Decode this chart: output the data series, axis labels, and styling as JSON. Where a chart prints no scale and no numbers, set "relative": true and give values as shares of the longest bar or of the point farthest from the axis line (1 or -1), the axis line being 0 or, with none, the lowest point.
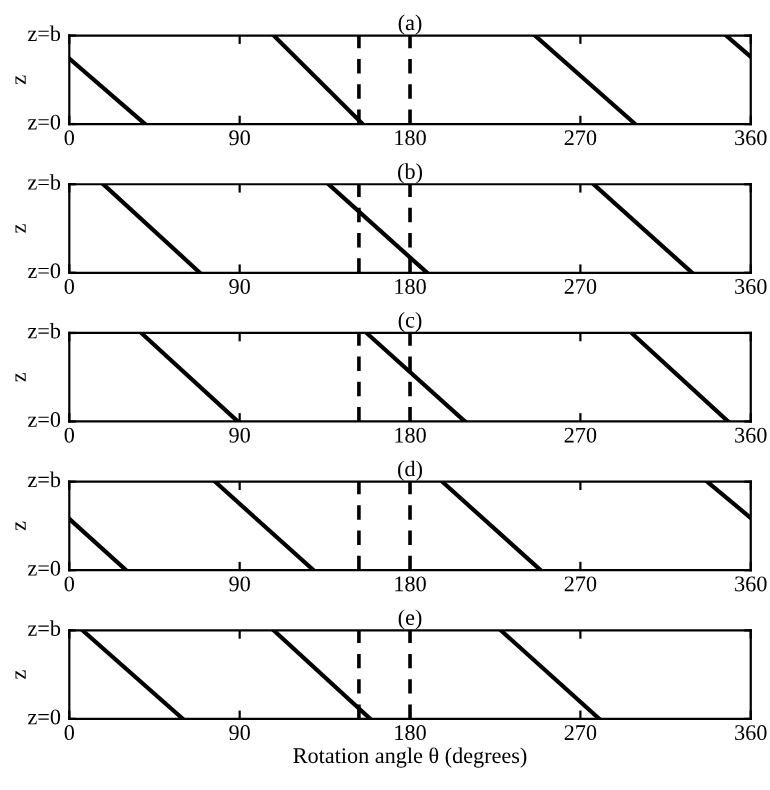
{
  "chart_data": [
    {
      "type": "line",
      "title": "(a)",
      "ylabel": "z",
      "xlim": [
        0,
        360
      ],
      "xticks": [
        0,
        90,
        180,
        270,
        360
      ],
      "relative": true,
      "annotations": [
        "z=0",
        "z=b"
      ],
      "ref_lines": [
        {
          "axis": "x",
          "value": 153,
          "color": "#000000",
          "line_style": "dashed"
        },
        {
          "axis": "x",
          "value": 180,
          "color": "#000000",
          "line_style": "dashed"
        }
      ],
      "series": [
        {
          "color": "#000000",
          "x": [
            0,
            40
          ],
          "values": [
            0.74,
            0
          ]
        },
        {
          "color": "#000000",
          "x": [
            108,
            155
          ],
          "values": [
            1,
            0
          ]
        },
        {
          "color": "#000000",
          "x": [
            246,
            299
          ],
          "values": [
            1,
            0
          ]
        },
        {
          "color": "#000000",
          "x": [
            347,
            360
          ],
          "values": [
            1,
            0.76
          ]
        }
      ]
    },
    {
      "type": "line",
      "title": "(b)",
      "ylabel": "z",
      "xlim": [
        0,
        360
      ],
      "xticks": [
        0,
        90,
        180,
        270,
        360
      ],
      "relative": true,
      "annotations": [
        "z=0",
        "z=b"
      ],
      "ref_lines": [
        {
          "axis": "x",
          "value": 153,
          "color": "#000000",
          "line_style": "dashed"
        },
        {
          "axis": "x",
          "value": 180,
          "color": "#000000",
          "line_style": "dashed"
        }
      ],
      "series": [
        {
          "color": "#000000",
          "x": [
            18,
            69
          ],
          "values": [
            1,
            0
          ]
        },
        {
          "color": "#000000",
          "x": [
            137,
            189
          ],
          "values": [
            1,
            0
          ]
        },
        {
          "color": "#000000",
          "x": [
            277,
            329
          ],
          "values": [
            1,
            0
          ]
        }
      ]
    },
    {
      "type": "line",
      "title": "(c)",
      "ylabel": "z",
      "xlim": [
        0,
        360
      ],
      "xticks": [
        0,
        90,
        180,
        270,
        360
      ],
      "relative": true,
      "annotations": [
        "z=0",
        "z=b"
      ],
      "ref_lines": [
        {
          "axis": "x",
          "value": 153,
          "color": "#000000",
          "line_style": "dashed"
        },
        {
          "axis": "x",
          "value": 180,
          "color": "#000000",
          "line_style": "dashed"
        }
      ],
      "series": [
        {
          "color": "#000000",
          "x": [
            38,
            89
          ],
          "values": [
            1,
            0
          ]
        },
        {
          "color": "#000000",
          "x": [
            157,
            209
          ],
          "values": [
            1,
            0
          ]
        },
        {
          "color": "#000000",
          "x": [
            297,
            348
          ],
          "values": [
            1,
            0
          ]
        }
      ]
    },
    {
      "type": "line",
      "title": "(d)",
      "ylabel": "z",
      "xlim": [
        0,
        360
      ],
      "xticks": [
        0,
        90,
        180,
        270,
        360
      ],
      "relative": true,
      "annotations": [
        "z=0",
        "z=b"
      ],
      "ref_lines": [
        {
          "axis": "x",
          "value": 153,
          "color": "#000000",
          "line_style": "dashed"
        },
        {
          "axis": "x",
          "value": 180,
          "color": "#000000",
          "line_style": "dashed"
        }
      ],
      "series": [
        {
          "color": "#000000",
          "x": [
            0,
            30
          ],
          "values": [
            0.58,
            0
          ]
        },
        {
          "color": "#000000",
          "x": [
            77,
            129
          ],
          "values": [
            1,
            0
          ]
        },
        {
          "color": "#000000",
          "x": [
            197,
            249
          ],
          "values": [
            1,
            0
          ]
        },
        {
          "color": "#000000",
          "x": [
            337,
            360
          ],
          "values": [
            1,
            0.59
          ]
        }
      ]
    },
    {
      "type": "line",
      "title": "(e)",
      "ylabel": "z",
      "xlabel": "Rotation angle θ (degrees)",
      "xlim": [
        0,
        360
      ],
      "xticks": [
        0,
        90,
        180,
        270,
        360
      ],
      "relative": true,
      "annotations": [
        "z=0",
        "z=b"
      ],
      "ref_lines": [
        {
          "axis": "x",
          "value": 153,
          "color": "#000000",
          "line_style": "dashed"
        },
        {
          "axis": "x",
          "value": 180,
          "color": "#000000",
          "line_style": "dashed"
        }
      ],
      "series": [
        {
          "color": "#000000",
          "x": [
            7,
            60
          ],
          "values": [
            1,
            0
          ]
        },
        {
          "color": "#000000",
          "x": [
            108,
            159
          ],
          "values": [
            1,
            0
          ]
        },
        {
          "color": "#000000",
          "x": [
            228,
            280
          ],
          "values": [
            1,
            0
          ]
        }
      ]
    }
  ]
}
